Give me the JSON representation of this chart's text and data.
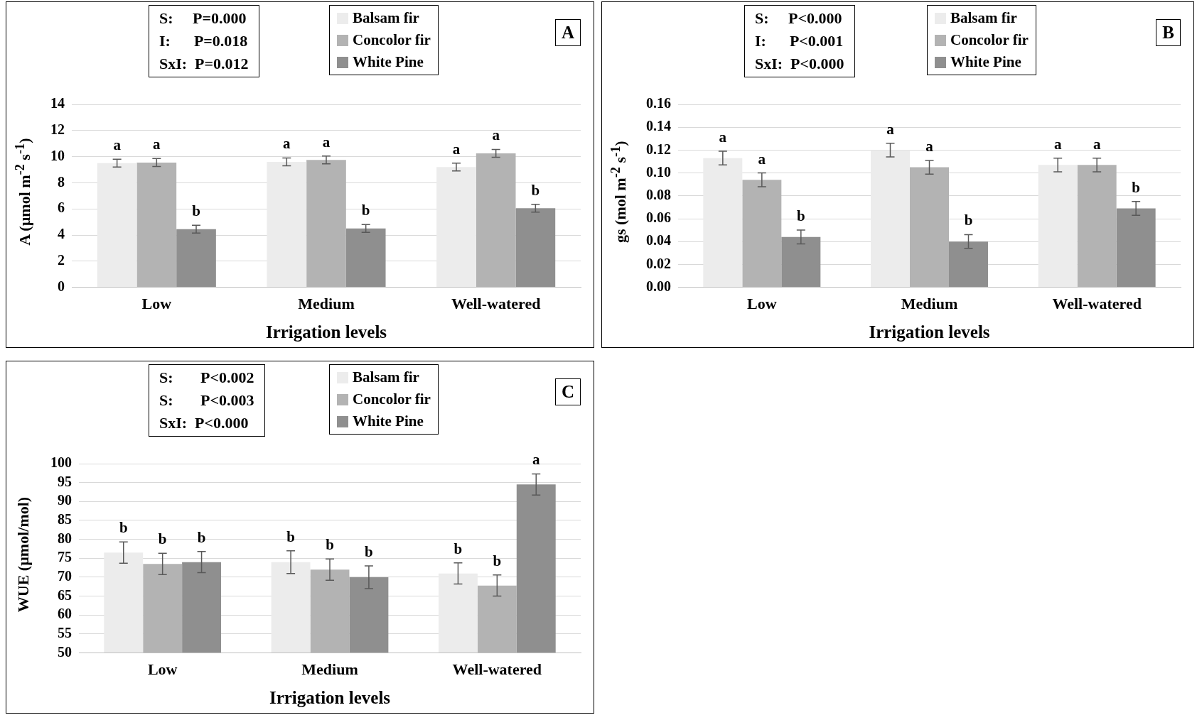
{
  "chart_data": [
    {
      "type": "bar",
      "categories": [
        "Low",
        "Medium",
        "Well-watered"
      ],
      "xlabel": "Irrigation levels",
      "ylabel": "A (µmol m$^{-2}$ s$^{-1}$)",
      "ylim": [
        0,
        14
      ],
      "yticks": [
        0,
        2,
        4,
        6,
        8,
        10,
        12,
        14
      ],
      "grid": "y",
      "legend": "top",
      "annotations": [
        "S:     P=0.000",
        "I:      P=0.018",
        "SxI:  P=0.012",
        "A"
      ],
      "series": [
        {
          "name": "Balsam fir",
          "color": "#ececec",
          "values": [
            9.5,
            9.6,
            9.2
          ],
          "errors": [
            0.3,
            0.3,
            0.3
          ],
          "value_labels": [
            "a",
            "a",
            "a"
          ]
        },
        {
          "name": "Concolor fir",
          "color": "#b3b3b3",
          "values": [
            9.55,
            9.75,
            10.25
          ],
          "errors": [
            0.3,
            0.3,
            0.3
          ],
          "value_labels": [
            "a",
            "a",
            "a"
          ]
        },
        {
          "name": "White Pine",
          "color": "#8f8f8f",
          "values": [
            4.45,
            4.5,
            6.05
          ],
          "errors": [
            0.3,
            0.3,
            0.3
          ],
          "value_labels": [
            "b",
            "b",
            "b"
          ]
        }
      ]
    },
    {
      "type": "bar",
      "categories": [
        "Low",
        "Medium",
        "Well-watered"
      ],
      "xlabel": "Irrigation levels",
      "ylabel": "gs (mol m$^{-2}$ s$^{-1}$)",
      "ylim": [
        0,
        0.16
      ],
      "yticks": [
        {
          "value": 0,
          "label": "0.00"
        },
        {
          "value": 0.02,
          "label": "0.02"
        },
        {
          "value": 0.04,
          "label": "0.04"
        },
        {
          "value": 0.06,
          "label": "0.06"
        },
        {
          "value": 0.08,
          "label": "0.08"
        },
        {
          "value": 0.1,
          "label": "0.10"
        },
        {
          "value": 0.12,
          "label": "0.12"
        },
        {
          "value": 0.14,
          "label": "0.14"
        },
        {
          "value": 0.16,
          "label": "0.16"
        }
      ],
      "grid": "y",
      "legend": "top",
      "annotations": [
        "S:     P<0.000",
        "I:      P<0.001",
        "SxI:  P<0.000",
        "B"
      ],
      "series": [
        {
          "name": "Balsam fir",
          "color": "#ececec",
          "values": [
            0.113,
            0.12,
            0.107
          ],
          "errors": [
            0.006,
            0.006,
            0.006
          ],
          "value_labels": [
            "a",
            "a",
            "a"
          ]
        },
        {
          "name": "Concolor fir",
          "color": "#b3b3b3",
          "values": [
            0.094,
            0.105,
            0.107
          ],
          "errors": [
            0.006,
            0.006,
            0.006
          ],
          "value_labels": [
            "a",
            "a",
            "a"
          ]
        },
        {
          "name": "White Pine",
          "color": "#8f8f8f",
          "values": [
            0.044,
            0.04,
            0.069
          ],
          "errors": [
            0.006,
            0.006,
            0.006
          ],
          "value_labels": [
            "b",
            "b",
            "b"
          ]
        }
      ]
    },
    {
      "type": "bar",
      "categories": [
        "Low",
        "Medium",
        "Well-watered"
      ],
      "xlabel": "Irrigation levels",
      "ylabel": "WUE (µmol/mol)",
      "ylim": [
        50,
        100
      ],
      "yticks": [
        50,
        55,
        60,
        65,
        70,
        75,
        80,
        85,
        90,
        95,
        100
      ],
      "grid": "y",
      "legend": "top",
      "annotations": [
        "S:       P<0.002",
        "S:       P<0.003",
        "SxI:  P<0.000",
        "C"
      ],
      "series": [
        {
          "name": "Balsam fir",
          "color": "#ececec",
          "values": [
            76.5,
            74,
            71
          ],
          "errors": [
            2.8,
            3,
            2.8
          ],
          "value_labels": [
            "b",
            "b",
            "b"
          ]
        },
        {
          "name": "Concolor fir",
          "color": "#b3b3b3",
          "values": [
            73.5,
            72,
            67.8
          ],
          "errors": [
            2.8,
            2.8,
            2.8
          ],
          "value_labels": [
            "b",
            "b",
            "b"
          ]
        },
        {
          "name": "White Pine",
          "color": "#8f8f8f",
          "values": [
            74,
            70,
            94.5
          ],
          "errors": [
            2.8,
            3,
            2.8
          ],
          "value_labels": [
            "b",
            "b",
            "a"
          ]
        }
      ]
    }
  ]
}
